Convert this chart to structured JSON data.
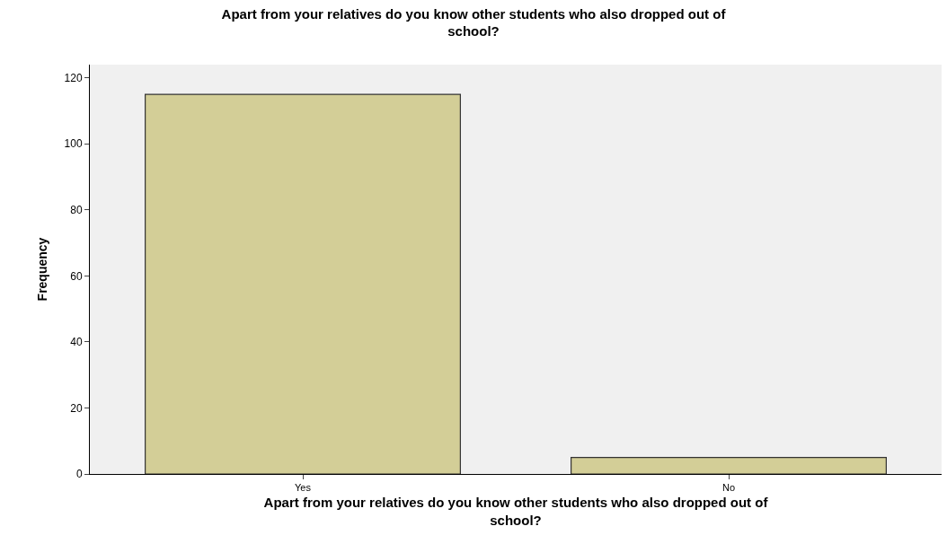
{
  "chart_data": {
    "type": "bar",
    "title": "Apart from your relatives do you know other students who also dropped out of school?",
    "xlabel": "Apart from your relatives do you know other students who also dropped out of school?",
    "ylabel": "Frequency",
    "categories": [
      "Yes",
      "No"
    ],
    "values": [
      115,
      5
    ],
    "color": "#d3ce97",
    "ylim": [
      0,
      124
    ],
    "yticks": [
      0,
      20,
      40,
      60,
      80,
      100,
      120
    ],
    "grid": false,
    "legend": false
  }
}
